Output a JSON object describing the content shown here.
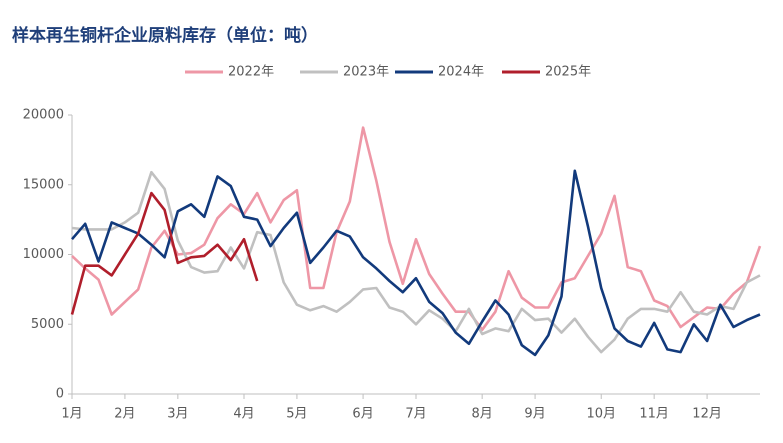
{
  "chart_data": {
    "type": "line",
    "title": "样本再生铜杆企业原料库存（单位：吨）",
    "categories": [
      "1月",
      null,
      null,
      null,
      "2月",
      null,
      null,
      null,
      "3月",
      null,
      null,
      null,
      null,
      "4月",
      null,
      null,
      null,
      "5月",
      null,
      null,
      null,
      null,
      "6月",
      null,
      null,
      null,
      "7月",
      null,
      null,
      null,
      null,
      "8月",
      null,
      null,
      null,
      "9月",
      null,
      null,
      null,
      null,
      "10月",
      null,
      null,
      null,
      "11月",
      null,
      null,
      null,
      "12月",
      null,
      null,
      null,
      null
    ],
    "series": [
      {
        "name": "2022年",
        "color": "#ee97a6",
        "values": [
          9900,
          9000,
          8200,
          5700,
          6600,
          7500,
          10500,
          11700,
          10000,
          10100,
          10700,
          12600,
          13600,
          12900,
          14400,
          12300,
          13900,
          14600,
          7600,
          7600,
          11600,
          13800,
          19100,
          15300,
          10900,
          7900,
          11100,
          8600,
          7200,
          5900,
          5900,
          4600,
          5900,
          8800,
          6900,
          6200,
          6200,
          8000,
          8300,
          9900,
          11500,
          14200,
          9100,
          8800,
          6700,
          6300,
          4800,
          5500,
          6200,
          6100,
          7200,
          8000,
          10600
        ]
      },
      {
        "name": "2023年",
        "color": "#c0c0c0",
        "values": [
          11900,
          11800,
          11800,
          11800,
          12300,
          13000,
          15900,
          14700,
          11000,
          9100,
          8700,
          8800,
          10500,
          9000,
          11600,
          11400,
          8000,
          6400,
          6000,
          6300,
          5900,
          6600,
          7500,
          7600,
          6200,
          5900,
          5000,
          6000,
          5400,
          4500,
          6100,
          4300,
          4700,
          4500,
          6100,
          5300,
          5400,
          4400,
          5400,
          4100,
          3000,
          3900,
          5400,
          6100,
          6100,
          5900,
          7300,
          5900,
          5700,
          6300,
          6100,
          8000,
          8500
        ]
      },
      {
        "name": "2024年",
        "color": "#123a7c",
        "values": [
          11100,
          12200,
          9500,
          12300,
          11900,
          11500,
          10700,
          9800,
          13100,
          13600,
          12700,
          15600,
          14900,
          12700,
          12500,
          10600,
          11900,
          13000,
          9400,
          10500,
          11700,
          11300,
          9800,
          9000,
          8100,
          7300,
          8300,
          6600,
          5800,
          4400,
          3600,
          5200,
          6700,
          5700,
          3500,
          2800,
          4200,
          7000,
          16000,
          12000,
          7600,
          4700,
          3800,
          3400,
          5100,
          3200,
          3000,
          5000,
          3800,
          6400,
          4800,
          5300,
          5700
        ]
      },
      {
        "name": "2025年",
        "color": "#b01e2b",
        "values": [
          5700,
          9200,
          9200,
          8500,
          10000,
          11500,
          14400,
          13200,
          9400,
          9800,
          9900,
          10700,
          9600,
          11100,
          8100,
          null,
          null,
          null,
          null,
          null,
          null,
          null,
          null,
          null,
          null,
          null,
          null,
          null,
          null,
          null,
          null,
          null,
          null,
          null,
          null,
          null,
          null,
          null,
          null,
          null,
          null,
          null,
          null,
          null,
          null,
          null,
          null,
          null,
          null,
          null,
          null,
          null,
          null
        ]
      }
    ],
    "ylim": [
      0,
      20000
    ],
    "yticks": [
      0,
      5000,
      10000,
      15000,
      20000
    ],
    "grid": false
  }
}
